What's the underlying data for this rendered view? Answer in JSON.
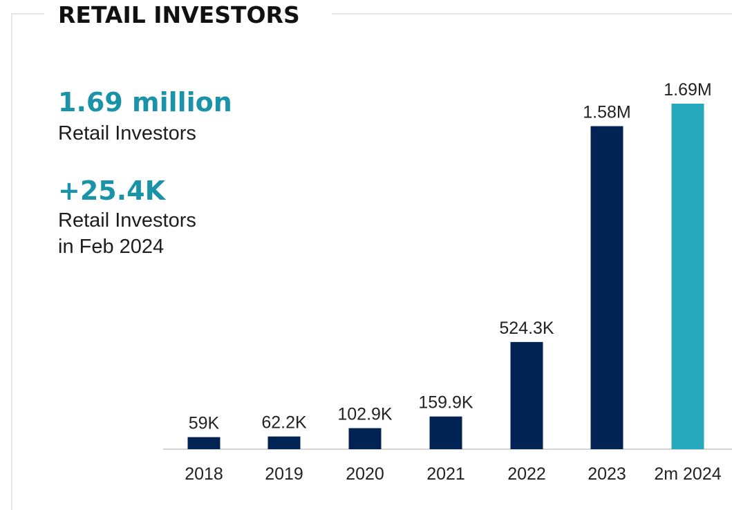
{
  "title": "RETAIL INVESTORS",
  "stats": {
    "total_value": "1.69 million",
    "total_label": "Retail Investors",
    "growth_value": "+25.4K",
    "growth_label_line1": "Retail Investors",
    "growth_label_line2": "in Feb 2024"
  },
  "colors": {
    "accent": "#1a93a8",
    "bar_dark": "#022454",
    "bar_highlight": "#26a8bd",
    "title": "#111111"
  },
  "chart_data": {
    "type": "bar",
    "categories": [
      "2018",
      "2019",
      "2020",
      "2021",
      "2022",
      "2023",
      "2m 2024"
    ],
    "values": [
      59000,
      62200,
      102900,
      159900,
      524300,
      1580000,
      1690000
    ],
    "data_labels": [
      "59K",
      "62.2K",
      "102.9K",
      "159.9K",
      "524.3K",
      "1.58M",
      "1.69M"
    ],
    "highlight_index": 6,
    "title": "",
    "xlabel": "",
    "ylabel": "",
    "ylim": [
      0,
      1690000
    ],
    "grid": false,
    "legend": "none"
  }
}
